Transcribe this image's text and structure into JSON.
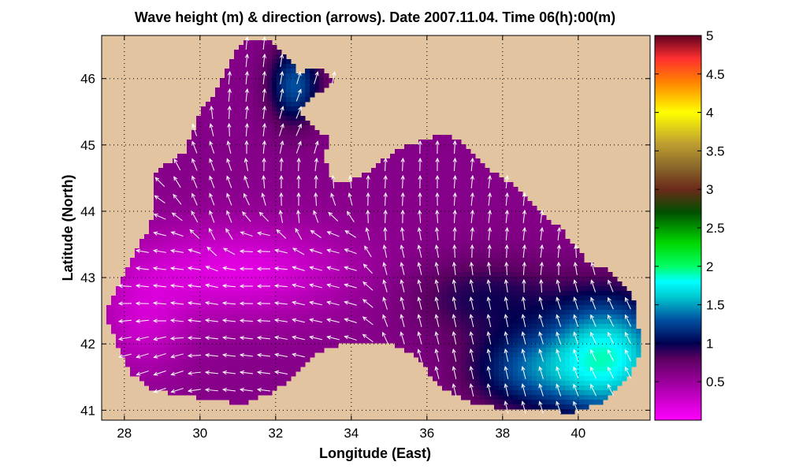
{
  "chart_data": {
    "type": "heatmap",
    "title": "Wave height (m) & direction (arrows). Date 2007.11.04. Time 06(h):00(m)",
    "xlabel": "Longitude (East)",
    "ylabel": "Latitude (North)",
    "xlim": [
      27.4,
      41.9
    ],
    "ylim": [
      40.85,
      46.65
    ],
    "x_ticks": [
      "28",
      "30",
      "32",
      "34",
      "36",
      "38",
      "40"
    ],
    "y_ticks": [
      "41",
      "42",
      "43",
      "44",
      "45",
      "46"
    ],
    "grid": true,
    "grid_style": "dotted",
    "colorbar": {
      "min": 0,
      "max": 5,
      "ticks": [
        "0.5",
        "1",
        "1.5",
        "2",
        "2.5",
        "3",
        "3.5",
        "4",
        "4.5",
        "5"
      ],
      "colormap_stops": [
        {
          "value": 0.0,
          "color": "#ff00ff"
        },
        {
          "value": 0.4,
          "color": "#b000b0"
        },
        {
          "value": 0.8,
          "color": "#5a0060"
        },
        {
          "value": 1.0,
          "color": "#000050"
        },
        {
          "value": 1.3,
          "color": "#0050a0"
        },
        {
          "value": 1.6,
          "color": "#00c8d0"
        },
        {
          "value": 1.8,
          "color": "#00ffff"
        },
        {
          "value": 2.0,
          "color": "#00ff66"
        },
        {
          "value": 2.3,
          "color": "#00d800"
        },
        {
          "value": 2.7,
          "color": "#005000"
        },
        {
          "value": 3.0,
          "color": "#6b2a1a"
        },
        {
          "value": 3.3,
          "color": "#8a6a2a"
        },
        {
          "value": 3.6,
          "color": "#c0a030"
        },
        {
          "value": 4.0,
          "color": "#ffff00"
        },
        {
          "value": 4.4,
          "color": "#ff8000"
        },
        {
          "value": 4.7,
          "color": "#ff3030"
        },
        {
          "value": 5.0,
          "color": "#600020"
        }
      ]
    },
    "land_color": "#e2c4a0",
    "arrow_color": "#ffffff",
    "wave_height_field": {
      "base": 0.6,
      "peaks": [
        {
          "lon": 40.8,
          "lat": 41.8,
          "height": 1.2,
          "spread_lon": 1.6,
          "spread_lat": 0.9
        },
        {
          "lon": 38.6,
          "lat": 41.6,
          "height": 0.6,
          "spread_lon": 1.6,
          "spread_lat": 0.6
        },
        {
          "lon": 32.5,
          "lat": 45.9,
          "height": 0.7,
          "spread_lon": 0.7,
          "spread_lat": 0.6
        },
        {
          "lon": 37.5,
          "lat": 42.7,
          "height": 0.35,
          "spread_lon": 2.0,
          "spread_lat": 0.6
        }
      ],
      "troughs": [
        {
          "lon": 31.0,
          "lat": 43.1,
          "depth": 0.45,
          "spread_lon": 3.0,
          "spread_lat": 0.7
        },
        {
          "lon": 28.5,
          "lat": 42.3,
          "depth": 0.3,
          "spread_lon": 1.2,
          "spread_lat": 0.8
        }
      ]
    },
    "sea_outline": [
      [
        27.5,
        42.45
      ],
      [
        27.8,
        42.0
      ],
      [
        28.0,
        41.75
      ],
      [
        28.2,
        41.55
      ],
      [
        28.6,
        41.35
      ],
      [
        29.2,
        41.25
      ],
      [
        29.9,
        41.2
      ],
      [
        30.4,
        41.15
      ],
      [
        31.2,
        41.1
      ],
      [
        31.8,
        41.25
      ],
      [
        32.4,
        41.45
      ],
      [
        33.0,
        41.85
      ],
      [
        33.8,
        42.0
      ],
      [
        34.6,
        42.02
      ],
      [
        35.1,
        42.0
      ],
      [
        35.6,
        41.85
      ],
      [
        36.0,
        41.6
      ],
      [
        36.5,
        41.3
      ],
      [
        37.2,
        41.12
      ],
      [
        37.8,
        41.05
      ],
      [
        38.4,
        40.98
      ],
      [
        39.2,
        41.0
      ],
      [
        39.8,
        40.97
      ],
      [
        40.6,
        41.1
      ],
      [
        41.1,
        41.35
      ],
      [
        41.55,
        41.7
      ],
      [
        41.65,
        42.0
      ],
      [
        41.5,
        42.6
      ],
      [
        41.3,
        42.85
      ],
      [
        40.8,
        43.1
      ],
      [
        40.2,
        43.25
      ],
      [
        39.9,
        43.5
      ],
      [
        39.5,
        43.75
      ],
      [
        39.0,
        44.0
      ],
      [
        38.5,
        44.3
      ],
      [
        38.0,
        44.5
      ],
      [
        37.5,
        44.7
      ],
      [
        37.0,
        45.0
      ],
      [
        36.6,
        45.15
      ],
      [
        36.0,
        45.1
      ],
      [
        35.5,
        45.0
      ],
      [
        35.0,
        44.85
      ],
      [
        34.5,
        44.6
      ],
      [
        34.0,
        44.45
      ],
      [
        33.6,
        44.4
      ],
      [
        33.4,
        44.6
      ],
      [
        33.3,
        44.85
      ],
      [
        33.4,
        45.1
      ],
      [
        33.1,
        45.2
      ],
      [
        32.8,
        45.35
      ],
      [
        32.6,
        45.5
      ],
      [
        33.0,
        45.75
      ],
      [
        33.3,
        45.85
      ],
      [
        33.55,
        46.0
      ],
      [
        33.2,
        46.15
      ],
      [
        32.6,
        46.1
      ],
      [
        32.1,
        46.45
      ],
      [
        31.7,
        46.6
      ],
      [
        31.5,
        46.55
      ],
      [
        31.2,
        46.6
      ],
      [
        30.9,
        46.4
      ],
      [
        30.6,
        46.0
      ],
      [
        30.4,
        45.8
      ],
      [
        30.0,
        45.5
      ],
      [
        29.8,
        45.2
      ],
      [
        29.6,
        44.9
      ],
      [
        29.2,
        44.75
      ],
      [
        28.8,
        44.55
      ],
      [
        28.75,
        44.2
      ],
      [
        28.7,
        43.8
      ],
      [
        28.3,
        43.4
      ],
      [
        28.1,
        43.2
      ],
      [
        27.9,
        42.9
      ],
      [
        27.7,
        42.7
      ]
    ],
    "wind_field": {
      "description": "Predominantly northward arrows in east/north; westward arrows in western-central basin",
      "vectors": [
        {
          "lon": 29.0,
          "lat": 41.5,
          "u": -0.6,
          "v": -0.2
        },
        {
          "lon": 31.0,
          "lat": 41.5,
          "u": -0.8,
          "v": 0.1
        },
        {
          "lon": 33.0,
          "lat": 42.3,
          "u": -0.9,
          "v": 0.2
        },
        {
          "lon": 29.5,
          "lat": 42.8,
          "u": -0.8,
          "v": 0.1
        },
        {
          "lon": 31.5,
          "lat": 43.0,
          "u": -1.0,
          "v": 0.0
        },
        {
          "lon": 33.5,
          "lat": 43.0,
          "u": -0.8,
          "v": 0.2
        },
        {
          "lon": 35.5,
          "lat": 43.0,
          "u": -0.2,
          "v": 0.8
        },
        {
          "lon": 37.5,
          "lat": 42.5,
          "u": -0.2,
          "v": 0.9
        },
        {
          "lon": 39.5,
          "lat": 42.3,
          "u": -0.3,
          "v": 0.9
        },
        {
          "lon": 40.8,
          "lat": 41.8,
          "u": -0.4,
          "v": 0.8
        },
        {
          "lon": 30.5,
          "lat": 44.2,
          "u": -0.3,
          "v": 0.8
        },
        {
          "lon": 32.5,
          "lat": 44.5,
          "u": 0.0,
          "v": 0.9
        },
        {
          "lon": 35.0,
          "lat": 44.3,
          "u": 0.05,
          "v": 0.9
        },
        {
          "lon": 37.5,
          "lat": 44.0,
          "u": 0.1,
          "v": 0.9
        },
        {
          "lon": 39.0,
          "lat": 43.5,
          "u": 0.1,
          "v": 0.8
        },
        {
          "lon": 31.5,
          "lat": 45.7,
          "u": 0.1,
          "v": 0.9
        },
        {
          "lon": 32.6,
          "lat": 45.2,
          "u": 0.3,
          "v": 0.7
        }
      ]
    }
  }
}
